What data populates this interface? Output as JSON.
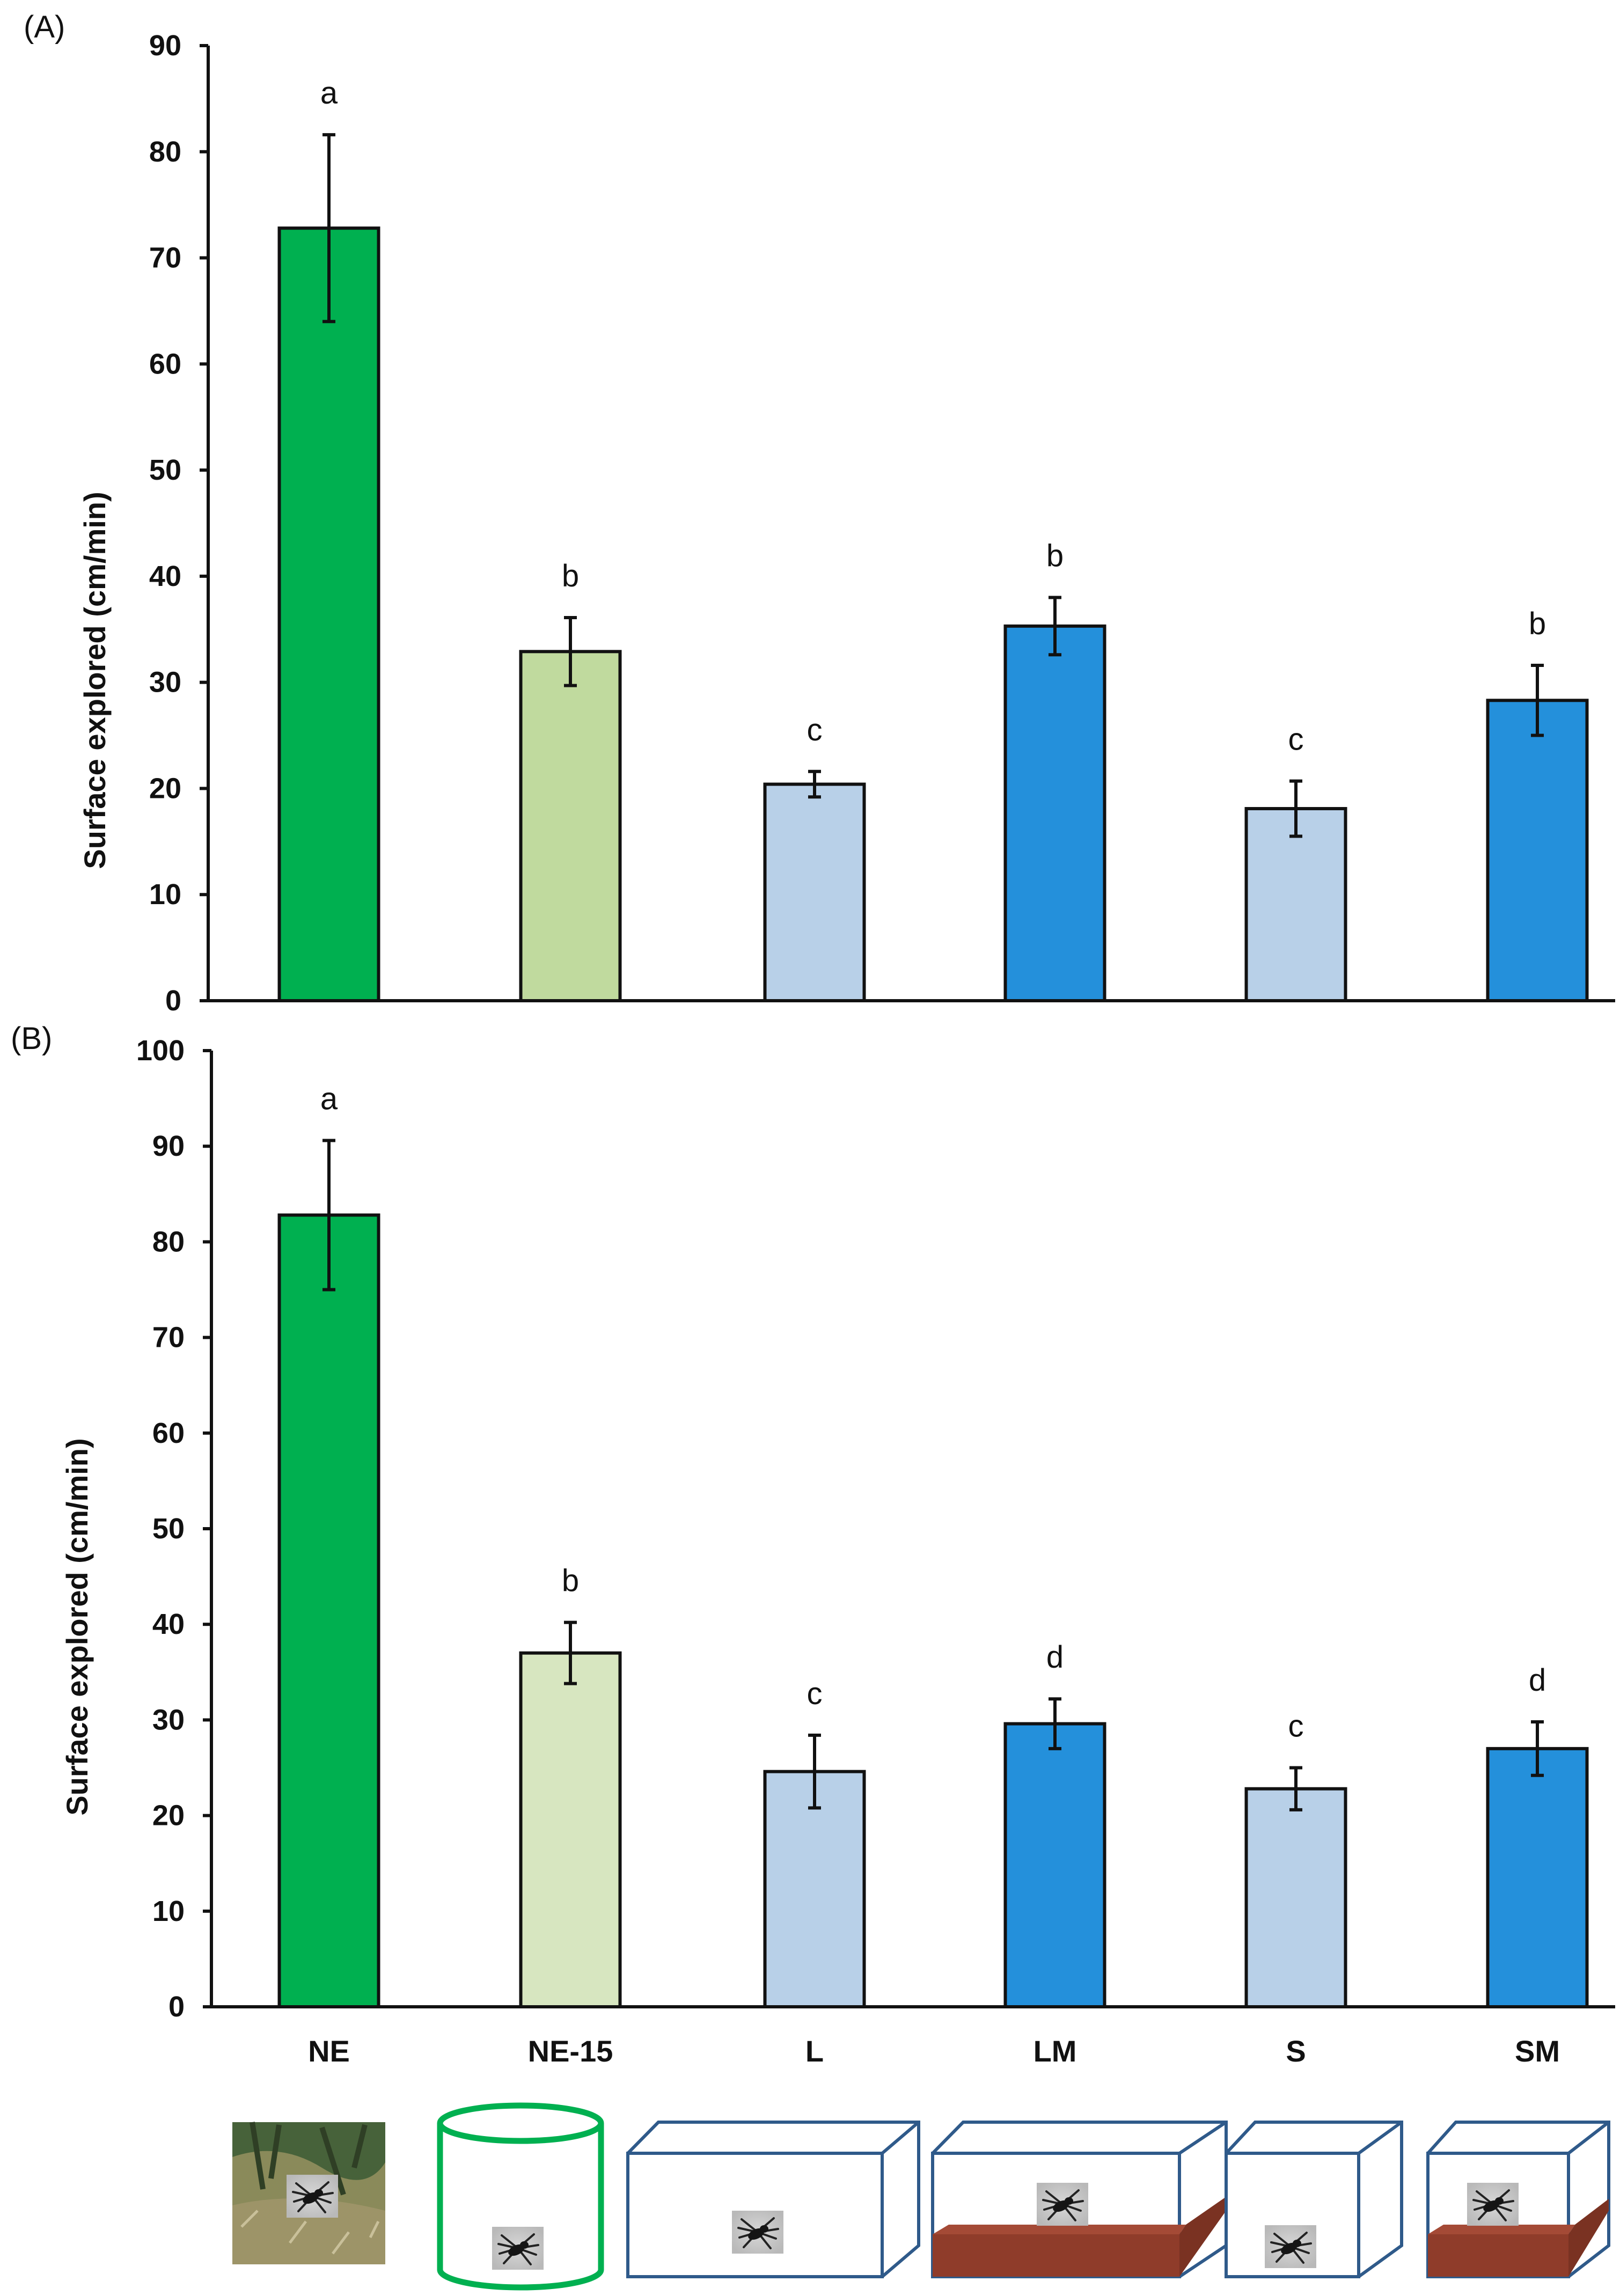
{
  "figure": {
    "panel_labels": [
      "(A)",
      "(B)"
    ]
  },
  "chart_data": [
    {
      "type": "bar",
      "panel": "(A)",
      "title": "",
      "xlabel": "",
      "ylabel": "Surface explored (cm/min)",
      "ylim": [
        0,
        90
      ],
      "yticks": [
        0,
        10,
        20,
        30,
        40,
        50,
        60,
        70,
        80,
        90
      ],
      "grid": false,
      "categories": [
        "NE",
        "NE-15",
        "L",
        "LM",
        "S",
        "SM"
      ],
      "values": [
        72.8,
        32.9,
        20.4,
        35.3,
        18.1,
        28.3
      ],
      "errors": [
        8.8,
        3.2,
        1.2,
        2.7,
        2.6,
        3.3
      ],
      "significance": [
        "a",
        "b",
        "c",
        "b",
        "c",
        "b"
      ],
      "colors": [
        "#00b050",
        "#c0da9e",
        "#b8d0e8",
        "#2490db",
        "#b8d0e8",
        "#2490db"
      ]
    },
    {
      "type": "bar",
      "panel": "(B)",
      "title": "",
      "xlabel": "",
      "ylabel": "Surface explored (cm/min)",
      "ylim": [
        0,
        100
      ],
      "yticks": [
        0,
        10,
        20,
        30,
        40,
        50,
        60,
        70,
        80,
        90,
        100
      ],
      "grid": false,
      "categories": [
        "NE",
        "NE-15",
        "L",
        "LM",
        "S",
        "SM"
      ],
      "values": [
        82.8,
        37.0,
        24.6,
        29.6,
        22.8,
        27.0
      ],
      "errors": [
        7.8,
        3.2,
        3.8,
        2.6,
        2.2,
        2.8
      ],
      "significance": [
        "a",
        "b",
        "c",
        "d",
        "c",
        "d"
      ],
      "colors": [
        "#00b050",
        "#d7e6c0",
        "#b8d0e8",
        "#2490db",
        "#b8d0e8",
        "#2490db"
      ]
    }
  ],
  "conditions": [
    {
      "category": "NE",
      "depiction": "natural-environment-photo"
    },
    {
      "category": "NE-15",
      "depiction": "cylinder-arena"
    },
    {
      "category": "L",
      "depiction": "large-box"
    },
    {
      "category": "LM",
      "depiction": "large-box-with-mat"
    },
    {
      "category": "S",
      "depiction": "small-box"
    },
    {
      "category": "SM",
      "depiction": "small-box-with-mat"
    }
  ],
  "colors": {
    "box_outline": "#2f5a8a",
    "cylinder_outline": "#00b050",
    "mat_brown": "#8f3c2a",
    "ground_green": "#4f6b3a"
  }
}
